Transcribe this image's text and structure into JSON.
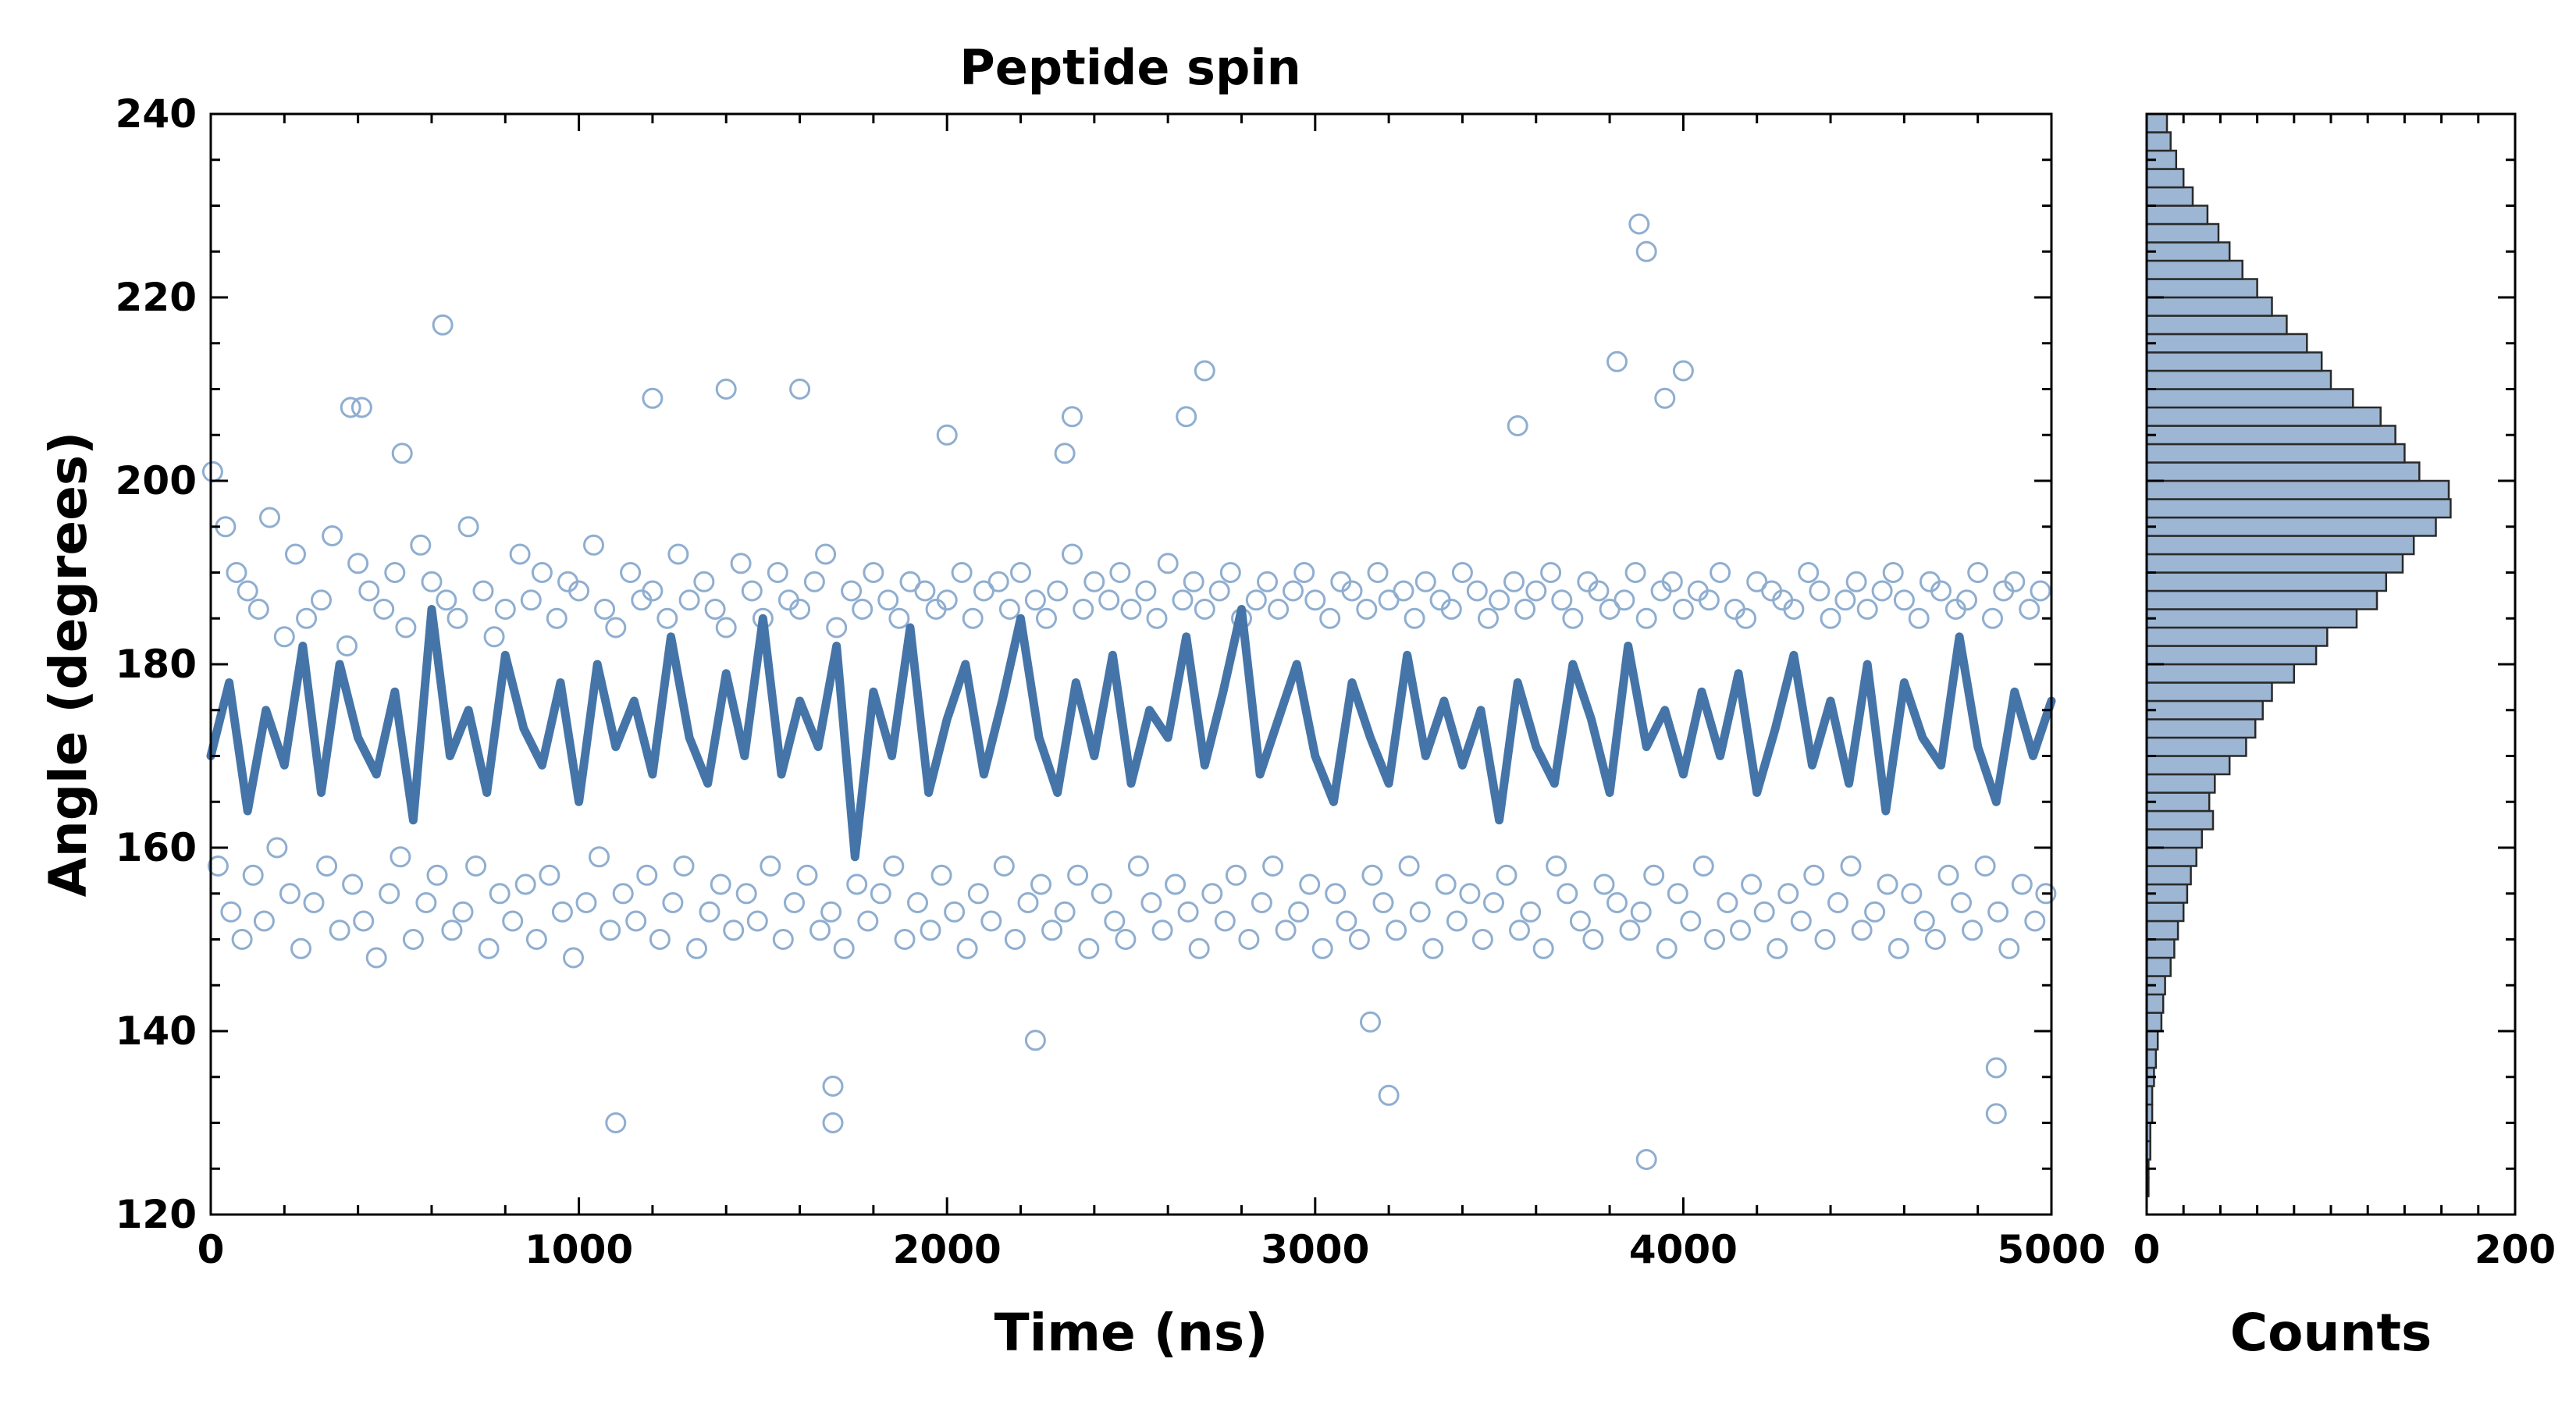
{
  "chart_data": [
    {
      "type": "scatter",
      "title": "Peptide spin",
      "xlabel": "Time (ns)",
      "ylabel": "Angle (degrees)",
      "xlim": [
        0,
        5000
      ],
      "ylim": [
        120,
        240
      ],
      "xticks": [
        0,
        1000,
        2000,
        3000,
        4000,
        5000
      ],
      "yticks": [
        120,
        140,
        160,
        180,
        200,
        220,
        240
      ],
      "grid": false,
      "colors": {
        "scatter": "#8faed0",
        "line": "#4575a8"
      },
      "series": [
        {
          "kind": "scatter-open-circles",
          "x": [
            5,
            40,
            70,
            100,
            130,
            160,
            200,
            230,
            260,
            300,
            330,
            370,
            400,
            430,
            470,
            500,
            530,
            570,
            600,
            640,
            670,
            700,
            740,
            770,
            800,
            840,
            870,
            900,
            940,
            970,
            1000,
            1040,
            1070,
            1100,
            1140,
            1170,
            1200,
            1240,
            1270,
            1300,
            1340,
            1370,
            1400,
            1440,
            1470,
            1500,
            1540,
            1570,
            1600,
            1640,
            1670,
            1700,
            1740,
            1770,
            1800,
            1840,
            1870,
            1900,
            1940,
            1970,
            2000,
            2040,
            2070,
            2100,
            2140,
            2170,
            2200,
            2240,
            2270,
            2300,
            2340,
            2370,
            2400,
            2440,
            2470,
            2500,
            2540,
            2570,
            2600,
            2640,
            2670,
            2700,
            2740,
            2770,
            2800,
            2840,
            2870,
            2900,
            2940,
            2970,
            3000,
            3040,
            3070,
            3100,
            3140,
            3170,
            3200,
            3240,
            3270,
            3300,
            3340,
            3370,
            3400,
            3440,
            3470,
            3500,
            3540,
            3570,
            3600,
            3640,
            3670,
            3700,
            3740,
            3770,
            3800,
            3840,
            3870,
            3900,
            3940,
            3970,
            4000,
            4040,
            4070,
            4100,
            4140,
            4170,
            4200,
            4240,
            4270,
            4300,
            4340,
            4370,
            4400,
            4440,
            4470,
            4500,
            4540,
            4570,
            4600,
            4640,
            4670,
            4700,
            4740,
            4770,
            4800,
            4840,
            4870,
            4900,
            4940,
            4970,
            20,
            55,
            85,
            115,
            145,
            180,
            215,
            245,
            280,
            315,
            350,
            385,
            415,
            450,
            485,
            515,
            550,
            585,
            615,
            655,
            685,
            720,
            755,
            785,
            820,
            855,
            885,
            920,
            955,
            985,
            1020,
            1055,
            1085,
            1120,
            1155,
            1185,
            1220,
            1255,
            1285,
            1320,
            1355,
            1385,
            1420,
            1455,
            1485,
            1520,
            1555,
            1585,
            1620,
            1655,
            1685,
            1720,
            1755,
            1785,
            1820,
            1855,
            1885,
            1920,
            1955,
            1985,
            2020,
            2055,
            2085,
            2120,
            2155,
            2185,
            2220,
            2255,
            2285,
            2320,
            2355,
            2385,
            2420,
            2455,
            2485,
            2520,
            2555,
            2585,
            2620,
            2655,
            2685,
            2720,
            2755,
            2785,
            2820,
            2855,
            2885,
            2920,
            2955,
            2985,
            3020,
            3055,
            3085,
            3120,
            3155,
            3185,
            3220,
            3255,
            3285,
            3320,
            3355,
            3385,
            3420,
            3455,
            3485,
            3520,
            3555,
            3585,
            3620,
            3655,
            3685,
            3720,
            3755,
            3785,
            3820,
            3855,
            3885,
            3920,
            3955,
            3985,
            4020,
            4055,
            4085,
            4120,
            4155,
            4185,
            4220,
            4255,
            4285,
            4320,
            4355,
            4385,
            4420,
            4455,
            4485,
            4520,
            4555,
            4585,
            4620,
            4655,
            4685,
            4720,
            4755,
            4785,
            4820,
            4855,
            4885,
            4920,
            4955,
            4985,
            630,
            2240,
            3150,
            3880,
            3900,
            4850,
            1690,
            1690,
            3200,
            3900,
            4850,
            1100,
            2700,
            1600,
            1200,
            380,
            3820,
            3950,
            4000,
            410,
            1400,
            2000,
            2320,
            2650,
            520,
            2340,
            3550
          ],
          "y": [
            201,
            195,
            190,
            188,
            186,
            196,
            183,
            192,
            185,
            187,
            194,
            182,
            191,
            188,
            186,
            190,
            184,
            193,
            189,
            187,
            185,
            195,
            188,
            183,
            186,
            192,
            187,
            190,
            185,
            189,
            188,
            193,
            186,
            184,
            190,
            187,
            188,
            185,
            192,
            187,
            189,
            186,
            184,
            191,
            188,
            185,
            190,
            187,
            186,
            189,
            192,
            184,
            188,
            186,
            190,
            187,
            185,
            189,
            188,
            186,
            187,
            190,
            185,
            188,
            189,
            186,
            190,
            187,
            185,
            188,
            192,
            186,
            189,
            187,
            190,
            186,
            188,
            185,
            191,
            187,
            189,
            186,
            188,
            190,
            185,
            187,
            189,
            186,
            188,
            190,
            187,
            185,
            189,
            188,
            186,
            190,
            187,
            188,
            185,
            189,
            187,
            186,
            190,
            188,
            185,
            187,
            189,
            186,
            188,
            190,
            187,
            185,
            189,
            188,
            186,
            187,
            190,
            185,
            188,
            189,
            186,
            188,
            187,
            190,
            186,
            185,
            189,
            188,
            187,
            186,
            190,
            188,
            185,
            187,
            189,
            186,
            188,
            190,
            187,
            185,
            189,
            188,
            186,
            187,
            190,
            185,
            188,
            189,
            186,
            188,
            158,
            153,
            150,
            157,
            152,
            160,
            155,
            149,
            154,
            158,
            151,
            156,
            152,
            148,
            155,
            159,
            150,
            154,
            157,
            151,
            153,
            158,
            149,
            155,
            152,
            156,
            150,
            157,
            153,
            148,
            154,
            159,
            151,
            155,
            152,
            157,
            150,
            154,
            158,
            149,
            153,
            156,
            151,
            155,
            152,
            158,
            150,
            154,
            157,
            151,
            153,
            149,
            156,
            152,
            155,
            158,
            150,
            154,
            151,
            157,
            153,
            149,
            155,
            152,
            158,
            150,
            154,
            156,
            151,
            153,
            157,
            149,
            155,
            152,
            150,
            158,
            154,
            151,
            156,
            153,
            149,
            155,
            152,
            157,
            150,
            154,
            158,
            151,
            153,
            156,
            149,
            155,
            152,
            150,
            157,
            154,
            151,
            158,
            153,
            149,
            156,
            152,
            155,
            150,
            154,
            157,
            151,
            153,
            149,
            158,
            155,
            152,
            150,
            156,
            154,
            151,
            153,
            157,
            149,
            155,
            152,
            158,
            150,
            154,
            151,
            156,
            153,
            149,
            155,
            152,
            157,
            150,
            154,
            158,
            151,
            153,
            156,
            149,
            155,
            152,
            150,
            157,
            154,
            151,
            158,
            153,
            149,
            156,
            152,
            155,
            217,
            139,
            141,
            228,
            225,
            131,
            134,
            130,
            133,
            126,
            136,
            130,
            212,
            210,
            209,
            208,
            213,
            209,
            212,
            208,
            210,
            205,
            203,
            207,
            203,
            207,
            206
          ],
          "radius_px": 12
        },
        {
          "kind": "line",
          "x": [
            0,
            50,
            100,
            150,
            200,
            250,
            300,
            350,
            400,
            450,
            500,
            550,
            600,
            650,
            700,
            750,
            800,
            850,
            900,
            950,
            1000,
            1050,
            1100,
            1150,
            1200,
            1250,
            1300,
            1350,
            1400,
            1450,
            1500,
            1550,
            1600,
            1650,
            1700,
            1750,
            1800,
            1850,
            1900,
            1950,
            2000,
            2050,
            2100,
            2150,
            2200,
            2250,
            2300,
            2350,
            2400,
            2450,
            2500,
            2550,
            2600,
            2650,
            2700,
            2750,
            2800,
            2850,
            2900,
            2950,
            3000,
            3050,
            3100,
            3150,
            3200,
            3250,
            3300,
            3350,
            3400,
            3450,
            3500,
            3550,
            3600,
            3650,
            3700,
            3750,
            3800,
            3850,
            3900,
            3950,
            4000,
            4050,
            4100,
            4150,
            4200,
            4250,
            4300,
            4350,
            4400,
            4450,
            4500,
            4550,
            4600,
            4650,
            4700,
            4750,
            4800,
            4850,
            4900,
            4950,
            5000
          ],
          "y": [
            170,
            178,
            164,
            175,
            169,
            182,
            166,
            180,
            172,
            168,
            177,
            163,
            186,
            170,
            175,
            166,
            181,
            173,
            169,
            178,
            165,
            180,
            171,
            176,
            168,
            183,
            172,
            167,
            179,
            170,
            185,
            168,
            176,
            171,
            182,
            159,
            177,
            170,
            184,
            166,
            174,
            180,
            168,
            176,
            185,
            172,
            166,
            178,
            170,
            181,
            167,
            175,
            172,
            183,
            169,
            177,
            186,
            168,
            174,
            180,
            170,
            165,
            178,
            172,
            167,
            181,
            170,
            176,
            169,
            175,
            163,
            178,
            171,
            167,
            180,
            174,
            166,
            182,
            171,
            175,
            168,
            177,
            170,
            179,
            166,
            173,
            181,
            169,
            176,
            167,
            180,
            164,
            178,
            172,
            169,
            183,
            171,
            165,
            177,
            170,
            176
          ]
        }
      ]
    },
    {
      "type": "bar",
      "orientation": "horizontal",
      "xlabel": "Counts",
      "xlim": [
        0,
        200
      ],
      "xticks": [
        0,
        200
      ],
      "ylim": [
        120,
        240
      ],
      "colors": {
        "bar": "#9db6d3",
        "edge": "#2a2a2a"
      },
      "bin_width": 2,
      "bin_edges_start": 120,
      "counts": [
        0,
        1,
        1,
        2,
        2,
        3,
        3,
        4,
        5,
        6,
        8,
        9,
        10,
        13,
        15,
        17,
        20,
        22,
        24,
        27,
        30,
        36,
        34,
        37,
        45,
        54,
        59,
        63,
        68,
        80,
        92,
        98,
        114,
        125,
        130,
        139,
        145,
        157,
        165,
        164,
        148,
        140,
        135,
        127,
        112,
        100,
        95,
        87,
        76,
        68,
        60,
        52,
        45,
        39,
        33,
        25,
        20,
        16,
        13,
        11
      ]
    }
  ]
}
